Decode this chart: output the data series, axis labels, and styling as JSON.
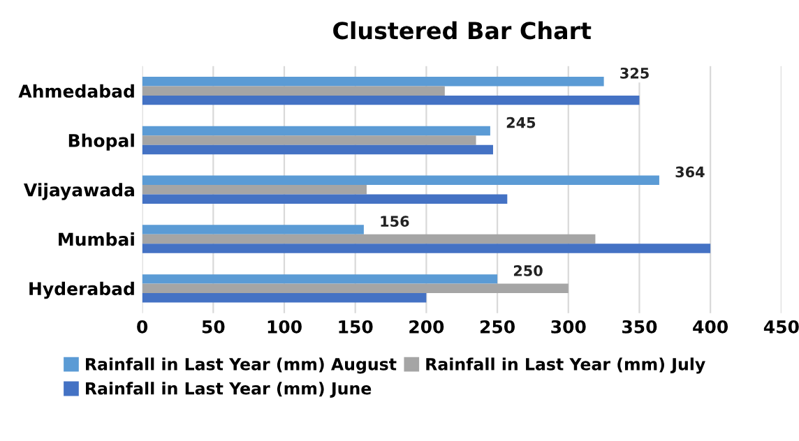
{
  "chart_data": {
    "type": "bar",
    "orientation": "horizontal",
    "title": "Clustered Bar Chart",
    "categories": [
      "Ahmedabad",
      "Bhopal",
      "Vijayawada",
      "Mumbai",
      "Hyderabad"
    ],
    "series": [
      {
        "name": "Rainfall in Last Year (mm) August",
        "color": "#5b9bd5",
        "values": [
          325,
          245,
          364,
          156,
          250
        ],
        "value_labels": [
          "325",
          "245",
          "364",
          "156",
          "250"
        ]
      },
      {
        "name": "Rainfall in Last Year (mm) July",
        "color": "#a5a5a5",
        "values": [
          213,
          235,
          158,
          319,
          300
        ]
      },
      {
        "name": "Rainfall in Last Year (mm) June",
        "color": "#4472c4",
        "values": [
          350,
          247,
          257,
          400,
          200
        ]
      }
    ],
    "xlim": [
      0,
      450
    ],
    "xticks": [
      0,
      50,
      100,
      150,
      200,
      250,
      300,
      350,
      400,
      450
    ],
    "grid": "x",
    "legend": "bottom"
  }
}
